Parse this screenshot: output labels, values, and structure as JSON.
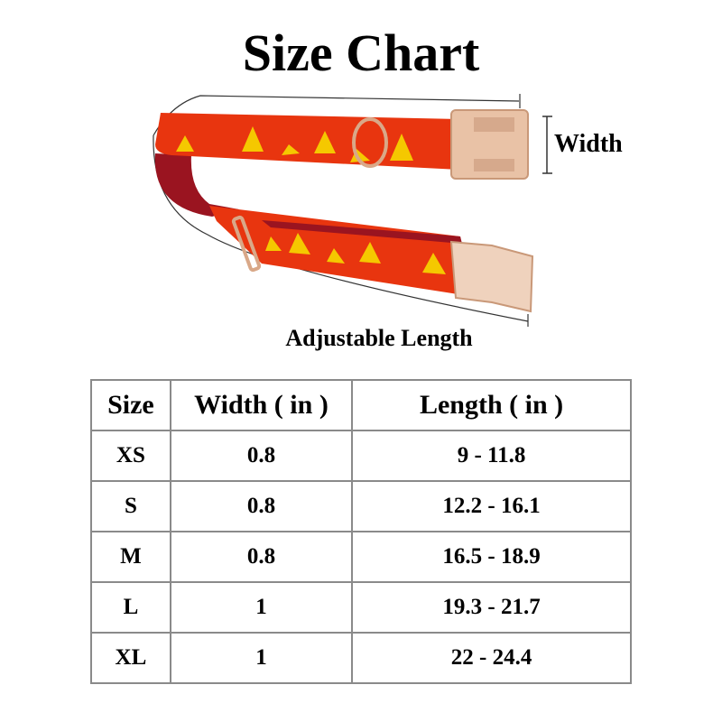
{
  "title": "Size Chart",
  "labels": {
    "width": "Width",
    "length": "Adjustable Length"
  },
  "colors": {
    "strap": "#e8350f",
    "pattern": "#f5c800",
    "lining": "#9a1420",
    "hardware": "#e9c2a6"
  },
  "table": {
    "headers": [
      "Size",
      "Width ( in )",
      "Length ( in )"
    ],
    "rows": [
      [
        "XS",
        "0.8",
        "9 - 11.8"
      ],
      [
        "S",
        "0.8",
        "12.2 - 16.1"
      ],
      [
        "M",
        "0.8",
        "16.5 - 18.9"
      ],
      [
        "L",
        "1",
        "19.3 - 21.7"
      ],
      [
        "XL",
        "1",
        "22 - 24.4"
      ]
    ]
  }
}
